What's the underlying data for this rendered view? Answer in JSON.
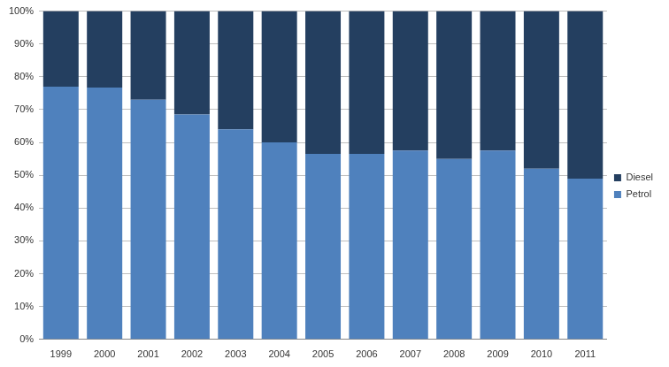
{
  "chart_data": {
    "type": "bar",
    "stacked": true,
    "grid": true,
    "legend": "right",
    "categories": [
      "1999",
      "2000",
      "2001",
      "2002",
      "2003",
      "2004",
      "2005",
      "2006",
      "2007",
      "2008",
      "2009",
      "2010",
      "2011"
    ],
    "series": [
      {
        "name": "Petrol",
        "color": "#4f81bd",
        "values": [
          77,
          76.7,
          73,
          68.5,
          64,
          60,
          56.5,
          56.5,
          57.5,
          55,
          57.5,
          52,
          49
        ]
      },
      {
        "name": "Diesel",
        "color": "#243f60",
        "values": [
          23,
          23.3,
          27,
          31.5,
          36,
          40,
          43.5,
          43.5,
          42.5,
          45,
          42.5,
          48,
          51
        ]
      }
    ],
    "ylim": [
      0,
      100
    ],
    "yticks": [
      {
        "value": 0,
        "label": "0%"
      },
      {
        "value": 10,
        "label": "10%"
      },
      {
        "value": 20,
        "label": "20%"
      },
      {
        "value": 30,
        "label": "30%"
      },
      {
        "value": 40,
        "label": "40%"
      },
      {
        "value": 50,
        "label": "50%"
      },
      {
        "value": 60,
        "label": "60%"
      },
      {
        "value": 70,
        "label": "70%"
      },
      {
        "value": 80,
        "label": "80%"
      },
      {
        "value": 90,
        "label": "90%"
      },
      {
        "value": 100,
        "label": "100%"
      }
    ]
  }
}
